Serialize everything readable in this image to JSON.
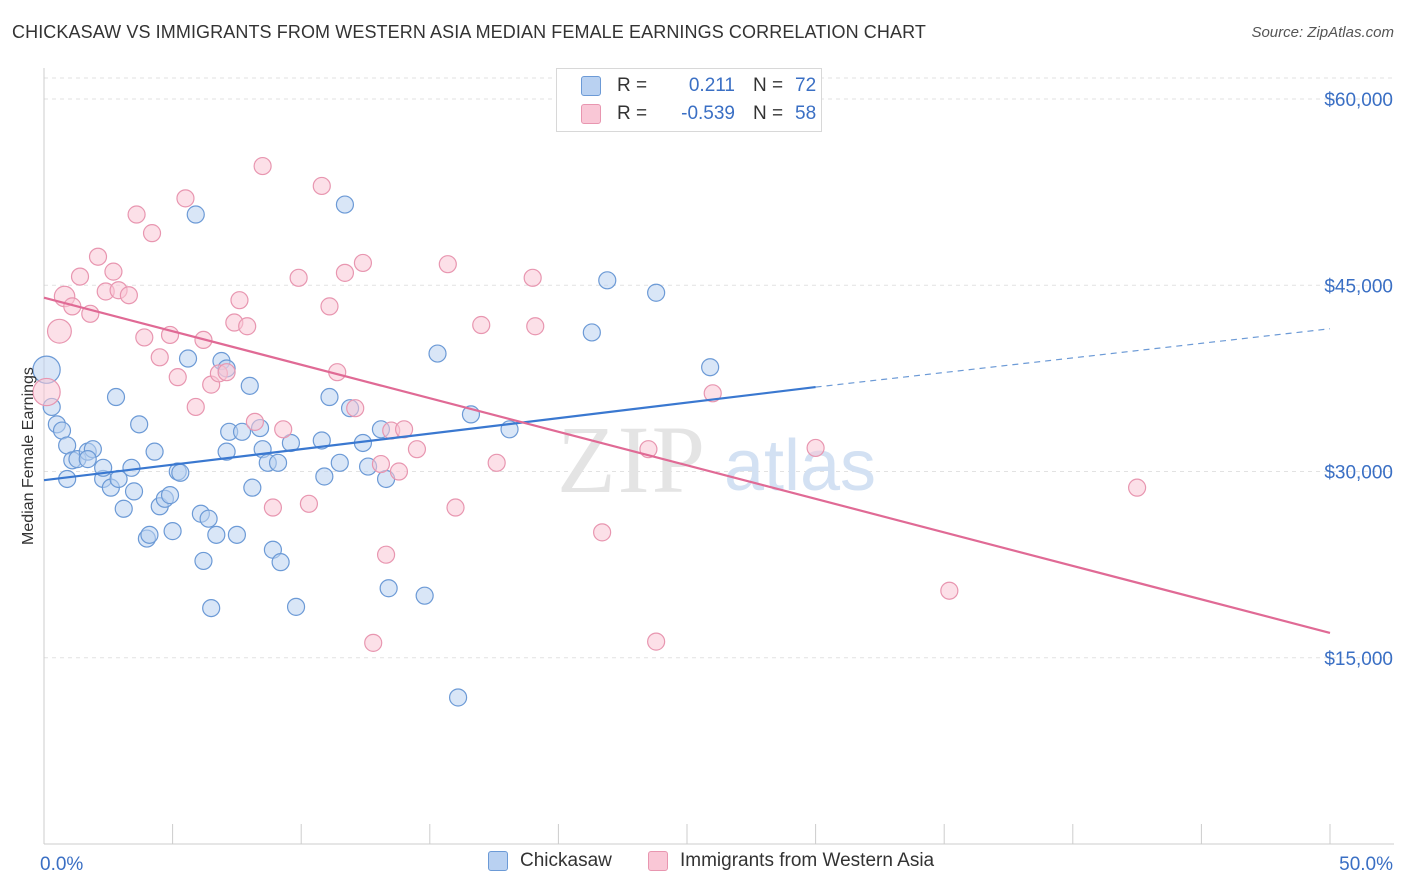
{
  "title": "CHICKASAW VS IMMIGRANTS FROM WESTERN ASIA MEDIAN FEMALE EARNINGS CORRELATION CHART",
  "source": "Source: ZipAtlas.com",
  "watermark": {
    "zip": "ZIP",
    "atlas": "atlas"
  },
  "legend_stats": [
    {
      "r_label": "R =",
      "r_value": "0.211",
      "n_label": "N =",
      "n_value": "72"
    },
    {
      "r_label": "R =",
      "r_value": "-0.539",
      "n_label": "N =",
      "n_value": "58"
    }
  ],
  "chart_data": {
    "type": "scatter",
    "ylabel": "Median Female Earnings",
    "xlim": [
      0,
      50
    ],
    "ylim": [
      0,
      62500
    ],
    "x_tick_labels": [
      {
        "value": 0,
        "label": "0.0%"
      },
      {
        "value": 50,
        "label": "50.0%"
      }
    ],
    "y_ticks": [
      {
        "value": 15000,
        "label": "$15,000"
      },
      {
        "value": 30000,
        "label": "$30,000"
      },
      {
        "value": 45000,
        "label": "$45,000"
      },
      {
        "value": 60000,
        "label": "$60,000"
      }
    ],
    "grid": "horizontal-dashed",
    "legend": "top-center and bottom",
    "series": [
      {
        "name": "Chickasaw",
        "color": "#6c9ad6",
        "fill": "#b9d1f1",
        "trend": {
          "x0": 0,
          "y0": 29300,
          "x1": 30,
          "y1": 36800,
          "dash_to_x": 50,
          "dash_to_y": 41500
        },
        "points": [
          [
            0.1,
            38200,
            1.6
          ],
          [
            0.3,
            35200,
            1
          ],
          [
            0.5,
            33800,
            1
          ],
          [
            0.7,
            33300,
            1
          ],
          [
            0.9,
            32100,
            1
          ],
          [
            1.1,
            30900,
            1
          ],
          [
            0.9,
            29400,
            1
          ],
          [
            1.3,
            31000,
            1
          ],
          [
            1.7,
            31600,
            1
          ],
          [
            1.9,
            31800,
            1
          ],
          [
            1.7,
            31000,
            1
          ],
          [
            2.3,
            29400,
            1
          ],
          [
            2.3,
            30300,
            1
          ],
          [
            2.6,
            28700,
            1
          ],
          [
            2.9,
            29400,
            1
          ],
          [
            3.1,
            27000,
            1
          ],
          [
            2.8,
            36000,
            1
          ],
          [
            3.4,
            30300,
            1
          ],
          [
            3.5,
            28400,
            1
          ],
          [
            3.7,
            33800,
            1
          ],
          [
            4.0,
            24600,
            1
          ],
          [
            4.1,
            24900,
            1
          ],
          [
            4.3,
            31600,
            1
          ],
          [
            4.5,
            27200,
            1
          ],
          [
            4.7,
            27800,
            1
          ],
          [
            4.9,
            28100,
            1
          ],
          [
            5.0,
            25200,
            1
          ],
          [
            5.2,
            30000,
            1
          ],
          [
            5.3,
            29900,
            1
          ],
          [
            5.6,
            39100,
            1
          ],
          [
            5.9,
            50700,
            1
          ],
          [
            6.1,
            26600,
            1
          ],
          [
            6.2,
            22800,
            1
          ],
          [
            6.4,
            26200,
            1
          ],
          [
            6.5,
            19000,
            1
          ],
          [
            6.7,
            24900,
            1
          ],
          [
            6.9,
            38900,
            1
          ],
          [
            7.1,
            38300,
            1
          ],
          [
            7.2,
            33200,
            1
          ],
          [
            7.5,
            24900,
            1
          ],
          [
            7.7,
            33200,
            1
          ],
          [
            8.0,
            36900,
            1
          ],
          [
            8.1,
            28700,
            1
          ],
          [
            8.4,
            33500,
            1
          ],
          [
            8.5,
            31800,
            1
          ],
          [
            8.7,
            30700,
            1
          ],
          [
            8.9,
            23700,
            1
          ],
          [
            9.1,
            30700,
            1
          ],
          [
            9.2,
            22700,
            1
          ],
          [
            9.6,
            32300,
            1
          ],
          [
            9.8,
            19100,
            1
          ],
          [
            10.8,
            32500,
            1
          ],
          [
            10.9,
            29600,
            1
          ],
          [
            11.1,
            36000,
            1
          ],
          [
            11.5,
            30700,
            1
          ],
          [
            11.7,
            51500,
            1
          ],
          [
            11.9,
            35100,
            1
          ],
          [
            12.4,
            32300,
            1
          ],
          [
            12.6,
            30400,
            1
          ],
          [
            13.1,
            33400,
            1
          ],
          [
            13.3,
            29400,
            1
          ],
          [
            13.4,
            20600,
            1
          ],
          [
            14.8,
            20000,
            1
          ],
          [
            15.3,
            39500,
            1
          ],
          [
            16.1,
            11800,
            1
          ],
          [
            16.6,
            34600,
            1
          ],
          [
            18.1,
            33400,
            1
          ],
          [
            21.3,
            41200,
            1
          ],
          [
            21.9,
            45400,
            1
          ],
          [
            23.8,
            44400,
            1
          ],
          [
            25.9,
            38400,
            1
          ],
          [
            7.1,
            31600,
            1
          ]
        ]
      },
      {
        "name": "Immigrants from Western Asia",
        "color": "#e896b0",
        "fill": "#f9c7d6",
        "trend": {
          "x0": 0,
          "y0": 44000,
          "x1": 50,
          "y1": 17000
        },
        "points": [
          [
            0.1,
            36400,
            1.6
          ],
          [
            0.6,
            41300,
            1.4
          ],
          [
            0.8,
            44100,
            1.2
          ],
          [
            1.1,
            43300,
            1
          ],
          [
            1.4,
            45700,
            1
          ],
          [
            1.8,
            42700,
            1
          ],
          [
            2.1,
            47300,
            1
          ],
          [
            2.4,
            44500,
            1
          ],
          [
            2.7,
            46100,
            1
          ],
          [
            2.9,
            44600,
            1
          ],
          [
            3.3,
            44200,
            1
          ],
          [
            3.6,
            50700,
            1
          ],
          [
            3.9,
            40800,
            1
          ],
          [
            4.2,
            49200,
            1
          ],
          [
            4.5,
            39200,
            1
          ],
          [
            4.9,
            41000,
            1
          ],
          [
            5.2,
            37600,
            1
          ],
          [
            5.5,
            52000,
            1
          ],
          [
            5.9,
            35200,
            1
          ],
          [
            6.2,
            40600,
            1
          ],
          [
            6.5,
            37000,
            1
          ],
          [
            6.8,
            37900,
            1
          ],
          [
            7.1,
            38000,
            1
          ],
          [
            7.4,
            42000,
            1
          ],
          [
            7.6,
            43800,
            1
          ],
          [
            7.9,
            41700,
            1
          ],
          [
            8.2,
            34000,
            1
          ],
          [
            8.5,
            54600,
            1
          ],
          [
            8.9,
            27100,
            1
          ],
          [
            9.3,
            33400,
            1
          ],
          [
            9.9,
            45600,
            1
          ],
          [
            10.3,
            27400,
            1
          ],
          [
            10.8,
            53000,
            1
          ],
          [
            11.1,
            43300,
            1
          ],
          [
            11.4,
            38000,
            1
          ],
          [
            11.7,
            46000,
            1
          ],
          [
            12.1,
            35100,
            1
          ],
          [
            12.4,
            46800,
            1
          ],
          [
            12.8,
            16200,
            1
          ],
          [
            13.1,
            30600,
            1
          ],
          [
            13.3,
            23300,
            1
          ],
          [
            13.5,
            33300,
            1
          ],
          [
            13.8,
            30000,
            1
          ],
          [
            14.0,
            33400,
            1
          ],
          [
            14.5,
            31800,
            1
          ],
          [
            15.7,
            46700,
            1
          ],
          [
            16.0,
            27100,
            1
          ],
          [
            17.0,
            41800,
            1
          ],
          [
            17.6,
            30700,
            1
          ],
          [
            19.0,
            45600,
            1
          ],
          [
            19.1,
            41700,
            1
          ],
          [
            21.7,
            25100,
            1
          ],
          [
            23.5,
            31800,
            1
          ],
          [
            23.8,
            16300,
            1
          ],
          [
            26.0,
            36300,
            1
          ],
          [
            30.0,
            31900,
            1
          ],
          [
            35.2,
            20400,
            1
          ],
          [
            42.5,
            28700,
            1
          ]
        ]
      }
    ]
  },
  "bottom_legend": [
    {
      "label": "Chickasaw"
    },
    {
      "label": "Immigrants from Western Asia"
    }
  ]
}
